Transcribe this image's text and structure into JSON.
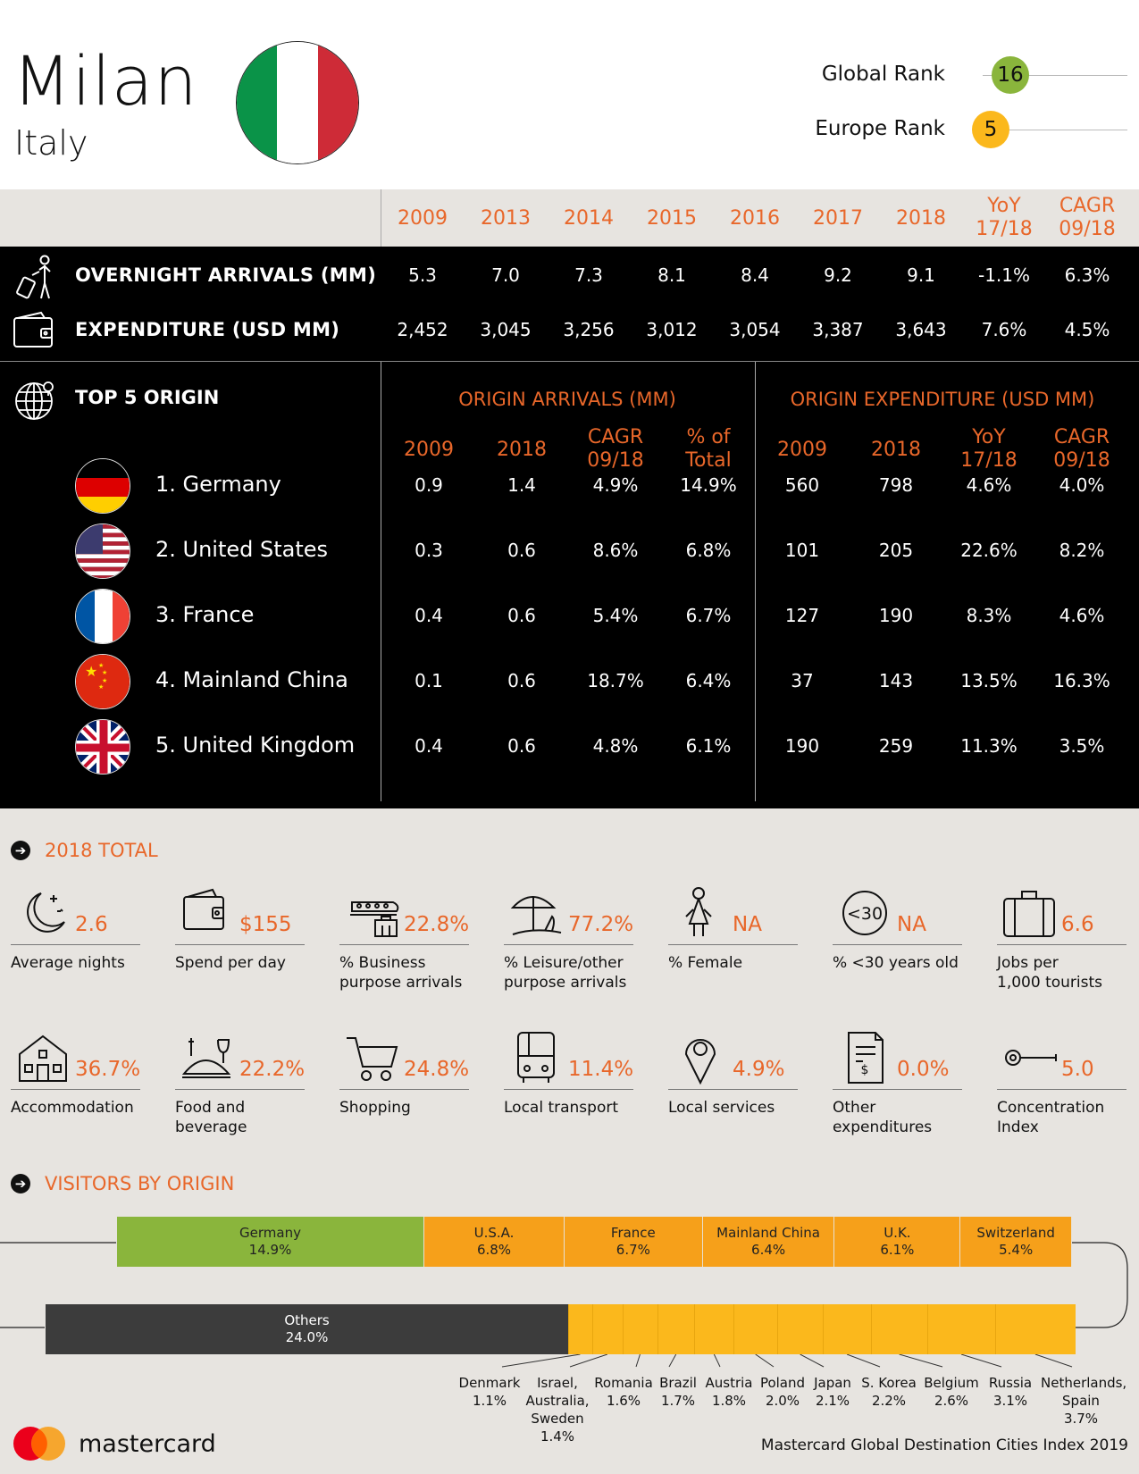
{
  "header": {
    "city": "Milan",
    "country": "Italy",
    "global_rank_label": "Global Rank",
    "global_rank": "16",
    "europe_rank_label": "Europe Rank",
    "europe_rank": "5",
    "global_rank_color": "#8ab53c",
    "europe_rank_color": "#fbb81c"
  },
  "years": [
    "2009",
    "2013",
    "2014",
    "2015",
    "2016",
    "2017",
    "2018"
  ],
  "yoy_header": [
    "YoY",
    "17/18"
  ],
  "cagr_header": [
    "CAGR",
    "09/18"
  ],
  "metrics": [
    {
      "label": "OVERNIGHT ARRIVALS (MM)",
      "icon": "traveler-icon",
      "values": [
        "5.3",
        "7.0",
        "7.3",
        "8.1",
        "8.4",
        "9.2",
        "9.1",
        "-1.1%",
        "6.3%"
      ]
    },
    {
      "label": "EXPENDITURE (USD MM)",
      "icon": "wallet-icon",
      "values": [
        "2,452",
        "3,045",
        "3,256",
        "3,012",
        "3,054",
        "3,387",
        "3,643",
        "7.6%",
        "4.5%"
      ]
    }
  ],
  "origin": {
    "title": "TOP 5 ORIGIN",
    "arrivals_title": "ORIGIN ARRIVALS (MM)",
    "expenditure_title": "ORIGIN EXPENDITURE (USD MM)",
    "arrivals_cols": [
      [
        "2009"
      ],
      [
        "2018"
      ],
      [
        "CAGR",
        "09/18"
      ],
      [
        "% of",
        "Total"
      ]
    ],
    "expenditure_cols": [
      [
        "2009"
      ],
      [
        "2018"
      ],
      [
        "YoY",
        "17/18"
      ],
      [
        "CAGR",
        "09/18"
      ]
    ],
    "rows": [
      {
        "name": "1. Germany",
        "flag": "germany",
        "values": [
          "0.9",
          "1.4",
          "4.9%",
          "14.9%",
          "560",
          "798",
          "4.6%",
          "4.0%"
        ]
      },
      {
        "name": "2. United States",
        "flag": "usa",
        "values": [
          "0.3",
          "0.6",
          "8.6%",
          "6.8%",
          "101",
          "205",
          "22.6%",
          "8.2%"
        ]
      },
      {
        "name": "3. France",
        "flag": "france",
        "values": [
          "0.4",
          "0.6",
          "5.4%",
          "6.7%",
          "127",
          "190",
          "8.3%",
          "4.6%"
        ]
      },
      {
        "name": "4. Mainland China",
        "flag": "china",
        "values": [
          "0.1",
          "0.6",
          "18.7%",
          "6.4%",
          "37",
          "143",
          "13.5%",
          "16.3%"
        ]
      },
      {
        "name": "5. United Kingdom",
        "flag": "uk",
        "values": [
          "0.4",
          "0.6",
          "4.8%",
          "6.1%",
          "190",
          "259",
          "11.3%",
          "3.5%"
        ]
      }
    ]
  },
  "totals": {
    "title": "2018 TOTAL",
    "row1": [
      {
        "icon": "moon-icon",
        "value": "2.6",
        "label": [
          "Average nights"
        ]
      },
      {
        "icon": "wallet-icon",
        "value": "$155",
        "label": [
          "Spend per day"
        ]
      },
      {
        "icon": "train-briefcase-icon",
        "value": "22.8%",
        "label": [
          "% Business",
          "purpose arrivals"
        ]
      },
      {
        "icon": "beach-umbrella-icon",
        "value": "77.2%",
        "label": [
          "% Leisure/other",
          "purpose arrivals"
        ]
      },
      {
        "icon": "female-icon",
        "value": "NA",
        "label": [
          "% Female"
        ]
      },
      {
        "icon": "under-30-icon",
        "icon_text": "<30",
        "value": "NA",
        "label": [
          "% <30 years old"
        ]
      },
      {
        "icon": "luggage-icon",
        "value": "6.6",
        "label": [
          "Jobs per",
          "1,000 tourists"
        ]
      }
    ],
    "row2": [
      {
        "icon": "house-icon",
        "value": "36.7%",
        "label": [
          "Accommodation"
        ]
      },
      {
        "icon": "food-icon",
        "value": "22.2%",
        "label": [
          "Food and",
          "beverage"
        ]
      },
      {
        "icon": "cart-icon",
        "value": "24.8%",
        "label": [
          "Shopping"
        ]
      },
      {
        "icon": "bus-icon",
        "value": "11.4%",
        "label": [
          "Local transport"
        ]
      },
      {
        "icon": "pin-icon",
        "value": "4.9%",
        "label": [
          "Local services"
        ]
      },
      {
        "icon": "receipt-icon",
        "icon_text": "$",
        "value": "0.0%",
        "label": [
          "Other",
          "expenditures"
        ]
      },
      {
        "icon": "key-icon",
        "value": "5.0",
        "label": [
          "Concentration",
          "Index"
        ]
      }
    ]
  },
  "visitors": {
    "title": "VISITORS BY ORIGIN",
    "top_row": [
      {
        "name": "Germany",
        "pct": "14.9%",
        "share": 14.9,
        "color": "#8ab53c"
      },
      {
        "name": "U.S.A.",
        "pct": "6.8%",
        "share": 6.8,
        "color": "#f6a01a"
      },
      {
        "name": "France",
        "pct": "6.7%",
        "share": 6.7,
        "color": "#f6a01a"
      },
      {
        "name": "Mainland China",
        "pct": "6.4%",
        "share": 6.4,
        "color": "#f6a01a"
      },
      {
        "name": "U.K.",
        "pct": "6.1%",
        "share": 6.1,
        "color": "#f6a01a"
      },
      {
        "name": "Switzerland",
        "pct": "5.4%",
        "share": 5.4,
        "color": "#f6a01a"
      }
    ],
    "others": {
      "name": "Others",
      "pct": "24.0%",
      "share": 24.0,
      "color": "#3c3c3c"
    },
    "bottom_row": [
      {
        "name": [
          "Denmark"
        ],
        "pct": "1.1%",
        "share": 1.1
      },
      {
        "name": [
          "Israel,",
          "Australia,",
          "Sweden"
        ],
        "pct": "1.4%",
        "share": 1.4
      },
      {
        "name": [
          "Romania"
        ],
        "pct": "1.6%",
        "share": 1.6
      },
      {
        "name": [
          "Brazil"
        ],
        "pct": "1.7%",
        "share": 1.7
      },
      {
        "name": [
          "Austria"
        ],
        "pct": "1.8%",
        "share": 1.8
      },
      {
        "name": [
          "Poland"
        ],
        "pct": "2.0%",
        "share": 2.0
      },
      {
        "name": [
          "Japan"
        ],
        "pct": "2.1%",
        "share": 2.1
      },
      {
        "name": [
          "S. Korea"
        ],
        "pct": "2.2%",
        "share": 2.2
      },
      {
        "name": [
          "Belgium"
        ],
        "pct": "2.6%",
        "share": 2.6
      },
      {
        "name": [
          "Russia"
        ],
        "pct": "3.1%",
        "share": 3.1
      },
      {
        "name": [
          "Netherlands,",
          "Spain"
        ],
        "pct": "3.7%",
        "share": 3.7
      }
    ]
  },
  "footer": {
    "brand": "mastercard",
    "source": "Mastercard Global Destination Cities Index 2019"
  }
}
